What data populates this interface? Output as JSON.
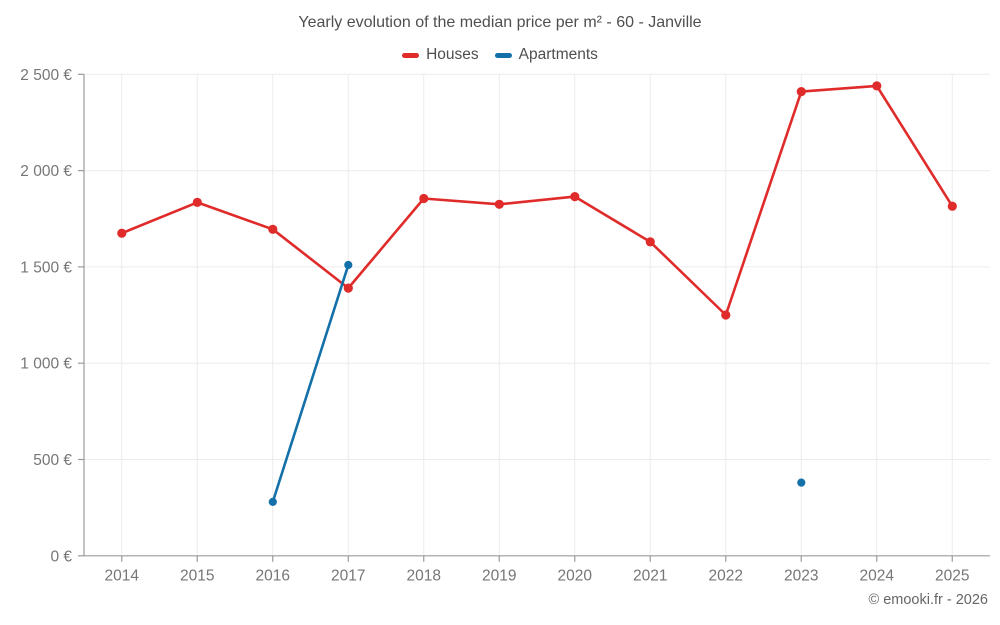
{
  "footer": {
    "text": "© emooki.fr - 2026"
  },
  "chart_data": {
    "type": "line",
    "title": "Yearly evolution of the median price per m² - 60 - Janville",
    "xlabel": "",
    "ylabel": "",
    "x": [
      2014,
      2015,
      2016,
      2017,
      2018,
      2019,
      2020,
      2021,
      2022,
      2023,
      2024,
      2025
    ],
    "series": [
      {
        "name": "Houses",
        "color": "#e02b2b",
        "values": [
          1675,
          1835,
          1695,
          1390,
          1855,
          1825,
          1865,
          1630,
          1250,
          2410,
          2440,
          1815
        ]
      },
      {
        "name": "Apartments",
        "color": "#1470a8",
        "values": [
          null,
          null,
          280,
          1510,
          null,
          null,
          null,
          null,
          null,
          380,
          null,
          null
        ]
      }
    ],
    "ylim": [
      0,
      2500
    ],
    "ytick_step": 500,
    "ytick_labels": [
      "0 €",
      "500 €",
      "1 000 €",
      "1 500 €",
      "2 000 €",
      "2 500 €"
    ],
    "grid": true,
    "legend_position": "top",
    "colors": {
      "grid": "#ececec",
      "axis": "#9b9b9b",
      "tick_text": "#767676",
      "title_text": "#4f4f4f"
    }
  }
}
